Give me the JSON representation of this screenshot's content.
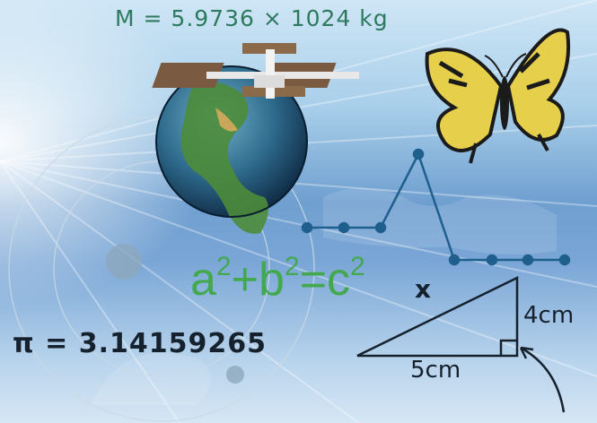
{
  "mass_formula": "M = 5.9736 × 1024 kg",
  "pi_formula": "π = 3.14159265",
  "pythagoras": {
    "a": "a",
    "b": "b",
    "c": "c",
    "exp": "2",
    "plus": "+",
    "eq": "="
  },
  "triangle": {
    "hypotenuse_label": "x",
    "vertical_label": "4cm",
    "horizontal_label": "5cm"
  },
  "colors": {
    "sky_top": "#cfe6f6",
    "sky_mid": "#6f9fd0",
    "formula_green": "#43a84f",
    "mass_text": "#2d7a5e",
    "ink": "#15222e",
    "line_blue": "#1f5f8e",
    "earth_ocean": "#2e6a8c",
    "earth_land": "#4d8c3a"
  },
  "icons": [
    "earth-globe",
    "space-station",
    "butterfly",
    "pulse-graph",
    "right-triangle",
    "curved-arrow"
  ]
}
